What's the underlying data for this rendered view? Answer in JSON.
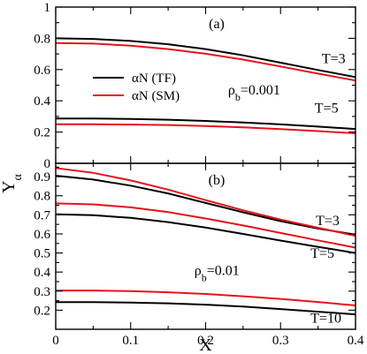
{
  "chart_data": [
    {
      "type": "line",
      "panel_label": "(a)",
      "xlim": [
        0,
        0.4
      ],
      "ylim": [
        0,
        1
      ],
      "yticks": [
        "0",
        "0.2",
        "0.4",
        "0.6",
        "0.8",
        "1"
      ],
      "xticks": [],
      "grid": false,
      "legend": {
        "placement": "center-left",
        "entries": [
          {
            "label": "αN (TF)",
            "color": "#000000"
          },
          {
            "label": "αN (SM)",
            "color": "#e8121a"
          }
        ]
      },
      "annotations": [
        {
          "text": "ρ",
          "sub": "b",
          "tail": "=0.001",
          "x": 0.23,
          "y": 0.44
        },
        {
          "text": "T=3",
          "x": 0.355,
          "y": 0.64
        },
        {
          "text": "T=5",
          "x": 0.3455,
          "y": 0.325
        }
      ],
      "series": [
        {
          "name": "αN (TF)",
          "group": "T=3",
          "color": "#000000",
          "x": [
            0,
            0.05,
            0.1,
            0.15,
            0.2,
            0.25,
            0.3,
            0.35,
            0.4
          ],
          "y": [
            0.8,
            0.796,
            0.783,
            0.762,
            0.731,
            0.691,
            0.644,
            0.597,
            0.552
          ]
        },
        {
          "name": "αN (SM)",
          "group": "T=3",
          "color": "#e8121a",
          "x": [
            0,
            0.05,
            0.1,
            0.15,
            0.2,
            0.25,
            0.3,
            0.35,
            0.4
          ],
          "y": [
            0.77,
            0.766,
            0.753,
            0.731,
            0.701,
            0.664,
            0.62,
            0.574,
            0.53
          ]
        },
        {
          "name": "αN (TF)",
          "group": "T=5",
          "color": "#000000",
          "x": [
            0,
            0.05,
            0.1,
            0.15,
            0.2,
            0.25,
            0.3,
            0.35,
            0.4
          ],
          "y": [
            0.287,
            0.287,
            0.284,
            0.279,
            0.271,
            0.261,
            0.249,
            0.235,
            0.22
          ]
        },
        {
          "name": "αN (SM)",
          "group": "T=5",
          "color": "#e8121a",
          "x": [
            0,
            0.05,
            0.1,
            0.15,
            0.2,
            0.25,
            0.3,
            0.35,
            0.4
          ],
          "y": [
            0.25,
            0.25,
            0.248,
            0.245,
            0.239,
            0.23,
            0.219,
            0.206,
            0.192
          ]
        }
      ]
    },
    {
      "type": "line",
      "panel_label": "(b)",
      "xlim": [
        0,
        0.4
      ],
      "ylim": [
        0.1,
        0.97
      ],
      "yticks": [
        "0.2",
        "0.3",
        "0.4",
        "0.5",
        "0.6",
        "0.7",
        "0.8",
        "0.9"
      ],
      "xticks": [
        "0",
        "0.1",
        "0.2",
        "0.3",
        "0.4"
      ],
      "xlabel": "X",
      "grid": false,
      "annotations": [
        {
          "text": "ρ",
          "sub": "b",
          "tail": "=0.01",
          "x": 0.185,
          "y": 0.385
        },
        {
          "text": "T=3",
          "x": 0.347,
          "y": 0.645
        },
        {
          "text": "T=5",
          "x": 0.34,
          "y": 0.475
        },
        {
          "text": "T=10",
          "x": 0.34,
          "y": 0.135
        }
      ],
      "series": [
        {
          "name": "αN (TF)",
          "group": "T=3",
          "color": "#000000",
          "x": [
            0,
            0.05,
            0.1,
            0.15,
            0.2,
            0.25,
            0.3,
            0.35,
            0.4
          ],
          "y": [
            0.905,
            0.885,
            0.853,
            0.812,
            0.762,
            0.713,
            0.667,
            0.628,
            0.596
          ]
        },
        {
          "name": "αN (SM)",
          "group": "T=3",
          "color": "#e8121a",
          "x": [
            0,
            0.05,
            0.1,
            0.15,
            0.2,
            0.25,
            0.3,
            0.35,
            0.4
          ],
          "y": [
            0.945,
            0.92,
            0.88,
            0.832,
            0.777,
            0.724,
            0.675,
            0.632,
            0.59
          ]
        },
        {
          "name": "αN (TF)",
          "group": "T=5",
          "color": "#000000",
          "x": [
            0,
            0.05,
            0.1,
            0.15,
            0.2,
            0.25,
            0.3,
            0.35,
            0.4
          ],
          "y": [
            0.703,
            0.698,
            0.684,
            0.662,
            0.633,
            0.6,
            0.565,
            0.532,
            0.5
          ]
        },
        {
          "name": "αN (SM)",
          "group": "T=5",
          "color": "#e8121a",
          "x": [
            0,
            0.05,
            0.1,
            0.15,
            0.2,
            0.25,
            0.3,
            0.35,
            0.4
          ],
          "y": [
            0.76,
            0.755,
            0.739,
            0.714,
            0.681,
            0.644,
            0.605,
            0.566,
            0.528
          ]
        },
        {
          "name": "αN (TF)",
          "group": "T=10",
          "color": "#000000",
          "x": [
            0,
            0.05,
            0.1,
            0.15,
            0.2,
            0.25,
            0.3,
            0.35,
            0.4
          ],
          "y": [
            0.242,
            0.242,
            0.24,
            0.236,
            0.229,
            0.219,
            0.206,
            0.192,
            0.178
          ]
        },
        {
          "name": "αN (SM)",
          "group": "T=10",
          "color": "#e8121a",
          "x": [
            0,
            0.05,
            0.1,
            0.15,
            0.2,
            0.25,
            0.3,
            0.35,
            0.4
          ],
          "y": [
            0.303,
            0.303,
            0.3,
            0.294,
            0.285,
            0.273,
            0.259,
            0.243,
            0.225
          ]
        }
      ]
    }
  ],
  "ylabel": {
    "main": "Y",
    "sub": "α"
  }
}
